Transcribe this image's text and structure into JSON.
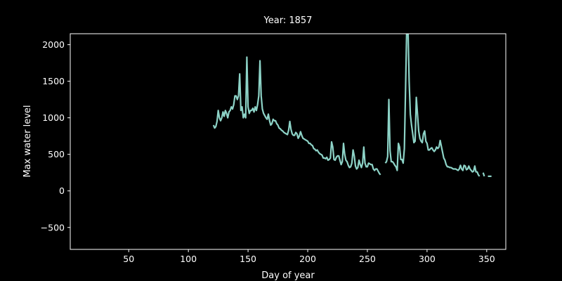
{
  "chart_data": {
    "type": "line",
    "title": "Year: 1857",
    "xlabel": "Day of year",
    "ylabel": "Max water level",
    "xlim": [
      1,
      366
    ],
    "ylim": [
      -800,
      2150
    ],
    "xticks": [
      50,
      100,
      150,
      200,
      250,
      300,
      350
    ],
    "yticks": [
      -500,
      0,
      500,
      1000,
      1500,
      2000
    ],
    "grid": false,
    "legend": "none",
    "colors": {
      "background": "#000000",
      "line": "#8dd3c7",
      "axes": "#ffffff",
      "text": "#ffffff"
    },
    "series": [
      {
        "segments": [
          [
            [
              121,
              900
            ],
            [
              122,
              860
            ],
            [
              123,
              880
            ],
            [
              124,
              950
            ],
            [
              125,
              1100
            ],
            [
              126,
              1000
            ],
            [
              127,
              960
            ],
            [
              128,
              1000
            ],
            [
              129,
              1080
            ],
            [
              130,
              1020
            ],
            [
              131,
              1100
            ],
            [
              132,
              1060
            ],
            [
              133,
              1000
            ],
            [
              134,
              1080
            ],
            [
              135,
              1100
            ],
            [
              136,
              1150
            ],
            [
              137,
              1120
            ],
            [
              138,
              1180
            ],
            [
              139,
              1300
            ],
            [
              140,
              1300
            ],
            [
              141,
              1250
            ],
            [
              142,
              1300
            ],
            [
              143,
              1600
            ],
            [
              144,
              1100
            ],
            [
              145,
              1150
            ],
            [
              146,
              1000
            ],
            [
              147,
              1050
            ],
            [
              148,
              1000
            ],
            [
              149,
              1830
            ],
            [
              150,
              1150
            ],
            [
              151,
              1060
            ],
            [
              152,
              1100
            ],
            [
              153,
              1100
            ],
            [
              154,
              1130
            ],
            [
              155,
              1080
            ],
            [
              156,
              1150
            ],
            [
              157,
              1100
            ],
            [
              158,
              1180
            ],
            [
              159,
              1300
            ],
            [
              160,
              1780
            ],
            [
              161,
              1300
            ],
            [
              162,
              1120
            ],
            [
              163,
              1060
            ],
            [
              164,
              1030
            ],
            [
              165,
              1000
            ],
            [
              166,
              980
            ],
            [
              167,
              1050
            ],
            [
              168,
              960
            ],
            [
              169,
              900
            ],
            [
              170,
              920
            ],
            [
              171,
              980
            ],
            [
              172,
              960
            ],
            [
              173,
              960
            ],
            [
              174,
              920
            ],
            [
              175,
              900
            ],
            [
              176,
              860
            ],
            [
              177,
              850
            ],
            [
              178,
              830
            ],
            [
              179,
              820
            ],
            [
              180,
              800
            ],
            [
              181,
              790
            ],
            [
              182,
              780
            ],
            [
              183,
              770
            ],
            [
              184,
              830
            ],
            [
              185,
              950
            ],
            [
              186,
              840
            ],
            [
              187,
              780
            ],
            [
              188,
              760
            ],
            [
              189,
              760
            ],
            [
              190,
              800
            ],
            [
              191,
              780
            ],
            [
              192,
              720
            ],
            [
              193,
              750
            ],
            [
              194,
              810
            ],
            [
              195,
              760
            ],
            [
              196,
              720
            ],
            [
              197,
              710
            ],
            [
              198,
              700
            ],
            [
              199,
              690
            ],
            [
              200,
              680
            ],
            [
              201,
              650
            ],
            [
              202,
              650
            ],
            [
              203,
              630
            ],
            [
              204,
              620
            ],
            [
              205,
              580
            ],
            [
              206,
              570
            ],
            [
              207,
              550
            ],
            [
              208,
              560
            ],
            [
              209,
              530
            ],
            [
              210,
              510
            ],
            [
              211,
              500
            ],
            [
              212,
              490
            ],
            [
              213,
              450
            ],
            [
              214,
              450
            ],
            [
              215,
              440
            ],
            [
              216,
              460
            ],
            [
              217,
              420
            ],
            [
              218,
              430
            ],
            [
              219,
              450
            ],
            [
              220,
              670
            ],
            [
              221,
              600
            ],
            [
              222,
              430
            ],
            [
              223,
              420
            ],
            [
              224,
              460
            ],
            [
              225,
              480
            ],
            [
              226,
              480
            ],
            [
              227,
              420
            ],
            [
              228,
              360
            ],
            [
              229,
              400
            ],
            [
              230,
              650
            ],
            [
              231,
              500
            ],
            [
              232,
              420
            ],
            [
              233,
              400
            ],
            [
              234,
              350
            ],
            [
              235,
              320
            ],
            [
              236,
              330
            ],
            [
              237,
              380
            ],
            [
              238,
              560
            ],
            [
              239,
              480
            ],
            [
              240,
              340
            ],
            [
              241,
              300
            ],
            [
              242,
              320
            ],
            [
              243,
              420
            ],
            [
              244,
              360
            ],
            [
              245,
              320
            ],
            [
              246,
              380
            ],
            [
              247,
              600
            ],
            [
              248,
              380
            ],
            [
              249,
              330
            ],
            [
              250,
              330
            ],
            [
              251,
              380
            ],
            [
              252,
              370
            ],
            [
              253,
              360
            ],
            [
              254,
              360
            ],
            [
              255,
              300
            ],
            [
              256,
              280
            ],
            [
              257,
              300
            ],
            [
              258,
              300
            ],
            [
              259,
              270
            ],
            [
              260,
              240
            ],
            [
              261,
              220
            ]
          ],
          [
            [
              265,
              380
            ],
            [
              266,
              400
            ],
            [
              267,
              470
            ],
            [
              268,
              1250
            ],
            [
              269,
              550
            ],
            [
              270,
              400
            ],
            [
              271,
              400
            ],
            [
              272,
              380
            ],
            [
              273,
              350
            ],
            [
              274,
              330
            ],
            [
              275,
              280
            ],
            [
              276,
              650
            ],
            [
              277,
              600
            ],
            [
              278,
              430
            ],
            [
              279,
              430
            ],
            [
              280,
              380
            ],
            [
              281,
              580
            ],
            [
              282,
              1400
            ],
            [
              283,
              2250
            ],
            [
              284,
              2250
            ],
            [
              285,
              1500
            ],
            [
              286,
              1050
            ],
            [
              287,
              900
            ],
            [
              288,
              780
            ],
            [
              289,
              660
            ],
            [
              290,
              680
            ],
            [
              291,
              1280
            ],
            [
              292,
              1050
            ],
            [
              293,
              820
            ],
            [
              294,
              720
            ],
            [
              295,
              680
            ],
            [
              296,
              660
            ],
            [
              297,
              780
            ],
            [
              298,
              820
            ],
            [
              299,
              680
            ],
            [
              300,
              650
            ],
            [
              301,
              560
            ],
            [
              302,
              560
            ],
            [
              303,
              580
            ],
            [
              304,
              590
            ],
            [
              305,
              560
            ],
            [
              306,
              540
            ],
            [
              307,
              560
            ],
            [
              308,
              600
            ],
            [
              309,
              580
            ],
            [
              310,
              600
            ],
            [
              311,
              690
            ],
            [
              312,
              610
            ],
            [
              313,
              530
            ],
            [
              314,
              450
            ],
            [
              315,
              420
            ],
            [
              316,
              360
            ],
            [
              317,
              330
            ],
            [
              318,
              330
            ],
            [
              319,
              320
            ],
            [
              320,
              320
            ],
            [
              321,
              310
            ],
            [
              322,
              300
            ],
            [
              323,
              300
            ],
            [
              324,
              300
            ],
            [
              325,
              290
            ],
            [
              326,
              280
            ],
            [
              327,
              300
            ],
            [
              328,
              350
            ],
            [
              329,
              300
            ],
            [
              330,
              280
            ],
            [
              331,
              350
            ],
            [
              332,
              340
            ],
            [
              333,
              290
            ],
            [
              334,
              300
            ],
            [
              335,
              340
            ],
            [
              336,
              300
            ],
            [
              337,
              280
            ],
            [
              338,
              260
            ],
            [
              339,
              270
            ],
            [
              340,
              340
            ],
            [
              341,
              260
            ],
            [
              342,
              260
            ],
            [
              343,
              220
            ],
            [
              344,
              200
            ]
          ],
          [
            [
              347,
              250
            ],
            [
              348,
              200
            ]
          ],
          [
            [
              351,
              200
            ],
            [
              352,
              200
            ],
            [
              353,
              200
            ],
            [
              354,
              200
            ]
          ]
        ]
      }
    ]
  }
}
